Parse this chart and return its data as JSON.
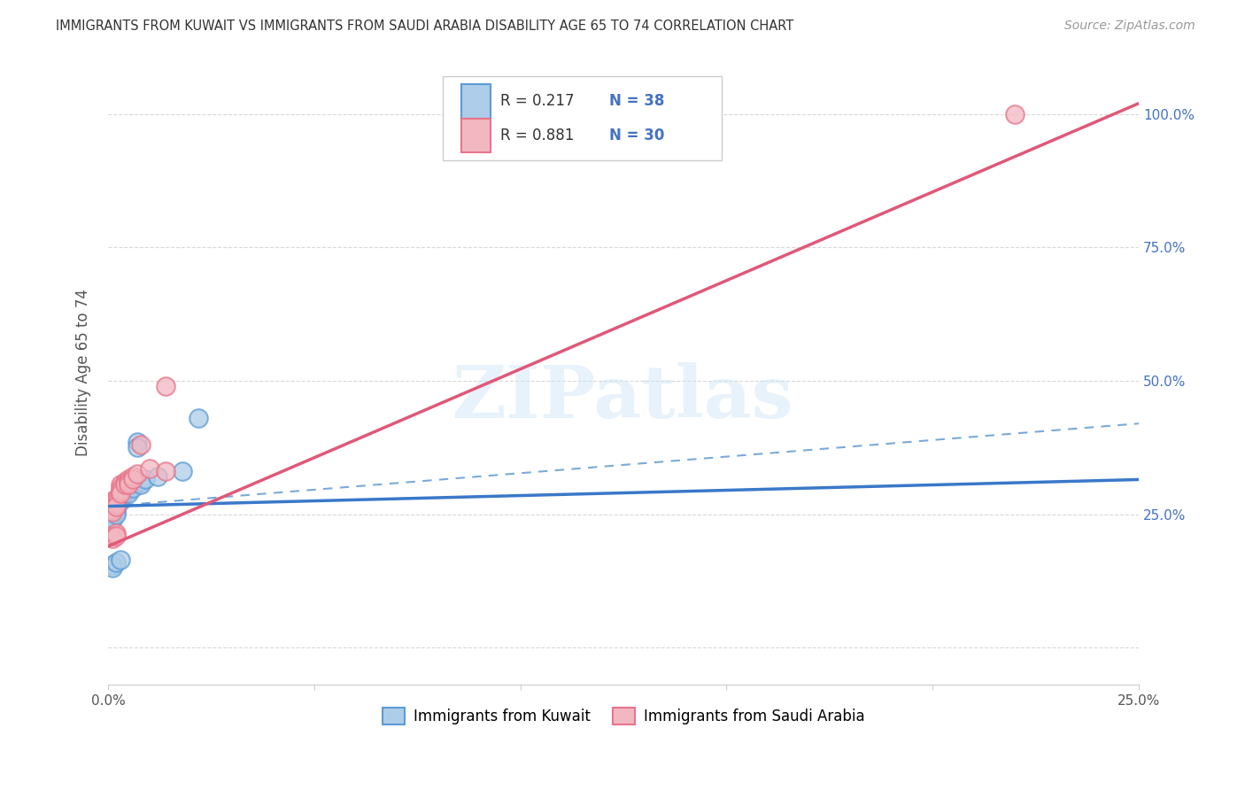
{
  "title": "IMMIGRANTS FROM KUWAIT VS IMMIGRANTS FROM SAUDI ARABIA DISABILITY AGE 65 TO 74 CORRELATION CHART",
  "source": "Source: ZipAtlas.com",
  "ylabel": "Disability Age 65 to 74",
  "xlim": [
    0.0,
    0.25
  ],
  "ylim": [
    -0.07,
    1.1
  ],
  "legend_kuwait_R": "R = 0.217",
  "legend_kuwait_N": "N = 38",
  "legend_saudi_R": "R = 0.881",
  "legend_saudi_N": "N = 30",
  "legend_label_kuwait": "Immigrants from Kuwait",
  "legend_label_saudi": "Immigrants from Saudi Arabia",
  "kuwait_color": "#5b9bd5",
  "kuwait_color_fill": "#aecde8",
  "saudi_color": "#e8748a",
  "saudi_color_fill": "#f2b8c2",
  "kuwait_scatter_x": [
    0.001,
    0.001,
    0.001,
    0.001,
    0.001,
    0.001,
    0.001,
    0.001,
    0.002,
    0.002,
    0.002,
    0.002,
    0.002,
    0.002,
    0.002,
    0.003,
    0.003,
    0.003,
    0.003,
    0.004,
    0.004,
    0.005,
    0.005,
    0.005,
    0.006,
    0.006,
    0.007,
    0.007,
    0.008,
    0.008,
    0.009,
    0.012,
    0.018,
    0.022,
    0.001,
    0.001,
    0.002,
    0.003
  ],
  "kuwait_scatter_y": [
    0.275,
    0.27,
    0.265,
    0.26,
    0.255,
    0.25,
    0.245,
    0.24,
    0.28,
    0.275,
    0.27,
    0.265,
    0.26,
    0.255,
    0.25,
    0.29,
    0.285,
    0.28,
    0.275,
    0.295,
    0.29,
    0.3,
    0.295,
    0.29,
    0.305,
    0.3,
    0.385,
    0.375,
    0.31,
    0.305,
    0.315,
    0.32,
    0.33,
    0.43,
    0.155,
    0.15,
    0.16,
    0.165
  ],
  "saudi_scatter_x": [
    0.001,
    0.001,
    0.001,
    0.001,
    0.001,
    0.002,
    0.002,
    0.002,
    0.002,
    0.003,
    0.003,
    0.003,
    0.003,
    0.004,
    0.004,
    0.005,
    0.005,
    0.005,
    0.006,
    0.006,
    0.007,
    0.008,
    0.01,
    0.014,
    0.014,
    0.001,
    0.001,
    0.002,
    0.002,
    0.22
  ],
  "saudi_scatter_y": [
    0.275,
    0.27,
    0.265,
    0.26,
    0.255,
    0.28,
    0.275,
    0.27,
    0.265,
    0.305,
    0.3,
    0.295,
    0.29,
    0.31,
    0.305,
    0.315,
    0.31,
    0.305,
    0.32,
    0.315,
    0.325,
    0.38,
    0.335,
    0.49,
    0.33,
    0.21,
    0.205,
    0.215,
    0.21,
    1.0
  ],
  "kuwait_trend_x": [
    0.0,
    0.25
  ],
  "kuwait_trend_y": [
    0.265,
    0.315
  ],
  "saudi_trend_x": [
    0.0,
    0.25
  ],
  "saudi_trend_y": [
    0.19,
    1.02
  ],
  "dashed_trend_x": [
    0.0,
    0.25
  ],
  "dashed_trend_y": [
    0.265,
    0.42
  ],
  "background_color": "#ffffff",
  "grid_color": "#d8d8d8",
  "title_color": "#333333",
  "axis_label_color": "#555555",
  "right_axis_color": "#4472c4"
}
